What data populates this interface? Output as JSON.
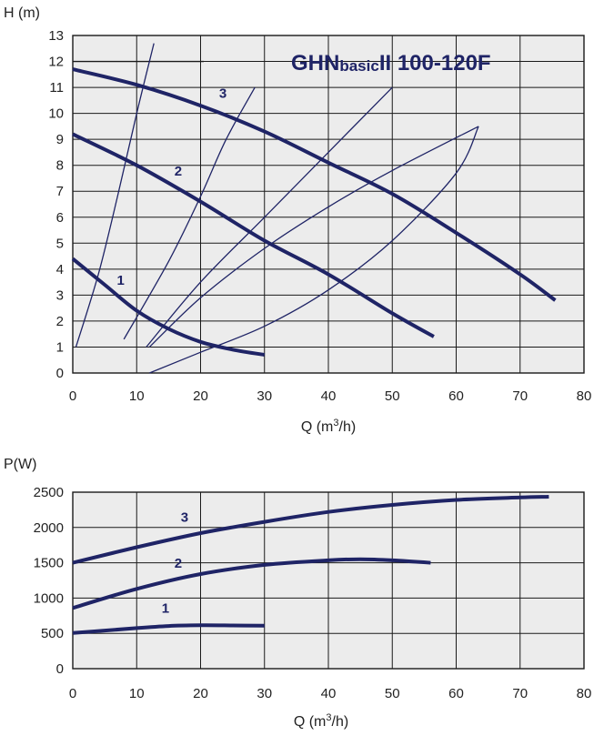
{
  "colors": {
    "background": "#ffffff",
    "plot_fill": "#ececec",
    "grid": "#1a1a1a",
    "curve": "#1f2466",
    "title": "#1f2466",
    "text": "#222222"
  },
  "chart_data": [
    {
      "type": "line",
      "title_main": "GHN",
      "title_sub": "basic",
      "title_tail": "II 100-120F",
      "ylabel": "H (m)",
      "xlabel_prefix": "Q (m",
      "xlabel_sup": "3",
      "xlabel_suffix": "/h)",
      "xlim": [
        0,
        80
      ],
      "ylim": [
        0,
        13
      ],
      "xticks": [
        "0",
        "10",
        "20",
        "30",
        "40",
        "50",
        "60",
        "70",
        "80"
      ],
      "yticks": [
        "0",
        "1",
        "2",
        "3",
        "4",
        "5",
        "6",
        "7",
        "8",
        "9",
        "10",
        "11",
        "12",
        "13"
      ],
      "grid": true,
      "series": [
        {
          "name": "1",
          "x": [
            0,
            5,
            10,
            15,
            20,
            25,
            30
          ],
          "y": [
            4.4,
            3.4,
            2.4,
            1.7,
            1.2,
            0.9,
            0.7
          ]
        },
        {
          "name": "2",
          "x": [
            0,
            10,
            20,
            30,
            40,
            50,
            56.5
          ],
          "y": [
            9.2,
            8.0,
            6.6,
            5.1,
            3.8,
            2.3,
            1.4
          ]
        },
        {
          "name": "3",
          "x": [
            0,
            10,
            20,
            30,
            40,
            50,
            60,
            70,
            75.5
          ],
          "y": [
            11.7,
            11.1,
            10.3,
            9.3,
            8.1,
            6.9,
            5.4,
            3.8,
            2.8
          ]
        }
      ],
      "series_labels": [
        {
          "text": "1",
          "x": 7.5,
          "y": 3.4
        },
        {
          "text": "2",
          "x": 16.5,
          "y": 7.6
        },
        {
          "text": "3",
          "x": 23.5,
          "y": 10.6
        }
      ],
      "system_curves": [
        {
          "x": [
            0.5,
            4,
            7,
            10,
            12.7
          ],
          "y": [
            1.0,
            3.8,
            6.8,
            10.0,
            12.7
          ]
        },
        {
          "x": [
            8,
            15,
            20,
            24,
            28.5
          ],
          "y": [
            1.3,
            4.3,
            6.8,
            9.0,
            11.0
          ]
        },
        {
          "x": [
            11.5,
            20,
            30,
            40,
            50
          ],
          "y": [
            1.0,
            3.5,
            6.0,
            8.5,
            11.0
          ]
        },
        {
          "x": [
            12,
            20,
            30,
            40,
            50,
            63.5
          ],
          "y": [
            1.0,
            2.9,
            4.8,
            6.4,
            7.8,
            9.5
          ]
        },
        {
          "x": [
            12,
            20,
            30,
            40,
            50,
            60,
            63.5
          ],
          "y": [
            0.0,
            0.8,
            1.8,
            3.2,
            5.1,
            7.7,
            9.5
          ]
        }
      ],
      "reference_line": {
        "x": [
          0,
          20.5
        ],
        "y": [
          12,
          12
        ]
      }
    },
    {
      "type": "line",
      "ylabel": "P(W)",
      "xlabel_prefix": "Q (m",
      "xlabel_sup": "3",
      "xlabel_suffix": "/h)",
      "xlim": [
        0,
        80
      ],
      "ylim": [
        0,
        2500
      ],
      "xticks": [
        "0",
        "10",
        "20",
        "30",
        "40",
        "50",
        "60",
        "70",
        "80"
      ],
      "yticks": [
        "0",
        "500",
        "1000",
        "1500",
        "2000",
        "2500"
      ],
      "grid": true,
      "series": [
        {
          "name": "1",
          "x": [
            0,
            5,
            10,
            15,
            20,
            25,
            30
          ],
          "y": [
            505,
            540,
            575,
            605,
            615,
            612,
            610
          ]
        },
        {
          "name": "2",
          "x": [
            0,
            10,
            20,
            30,
            40,
            45,
            50,
            56
          ],
          "y": [
            860,
            1130,
            1340,
            1470,
            1535,
            1550,
            1535,
            1500
          ]
        },
        {
          "name": "3",
          "x": [
            0,
            10,
            20,
            30,
            40,
            50,
            60,
            70,
            74.5
          ],
          "y": [
            1500,
            1720,
            1920,
            2080,
            2220,
            2320,
            2390,
            2425,
            2435
          ]
        }
      ],
      "series_labels": [
        {
          "text": "1",
          "x": 14.5,
          "y": 790
        },
        {
          "text": "2",
          "x": 16.5,
          "y": 1430
        },
        {
          "text": "3",
          "x": 17.5,
          "y": 2080
        }
      ]
    }
  ]
}
